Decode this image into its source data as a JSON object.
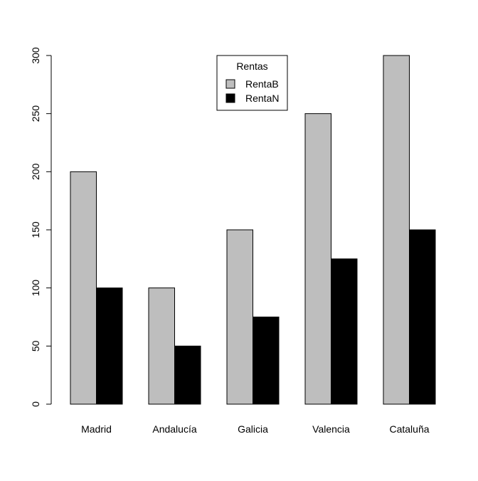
{
  "chart_data": {
    "type": "bar",
    "title": "",
    "xlabel": "",
    "ylabel": "",
    "categories": [
      "Madrid",
      "Andalucía",
      "Galicia",
      "Valencia",
      "Cataluña"
    ],
    "series": [
      {
        "name": "RentaB",
        "values": [
          200,
          100,
          150,
          250,
          300
        ],
        "color": "#BEBEBE"
      },
      {
        "name": "RentaN",
        "values": [
          100,
          50,
          75,
          125,
          150
        ],
        "color": "#000000"
      }
    ],
    "ylim": [
      0,
      300
    ],
    "yticks": [
      0,
      50,
      100,
      150,
      200,
      250,
      300
    ],
    "ytick_labels": [
      "0",
      "50",
      "100",
      "150",
      "200",
      "250",
      "300"
    ],
    "grid": false,
    "legend": {
      "title": "Rentas",
      "placement": "top-center"
    }
  }
}
